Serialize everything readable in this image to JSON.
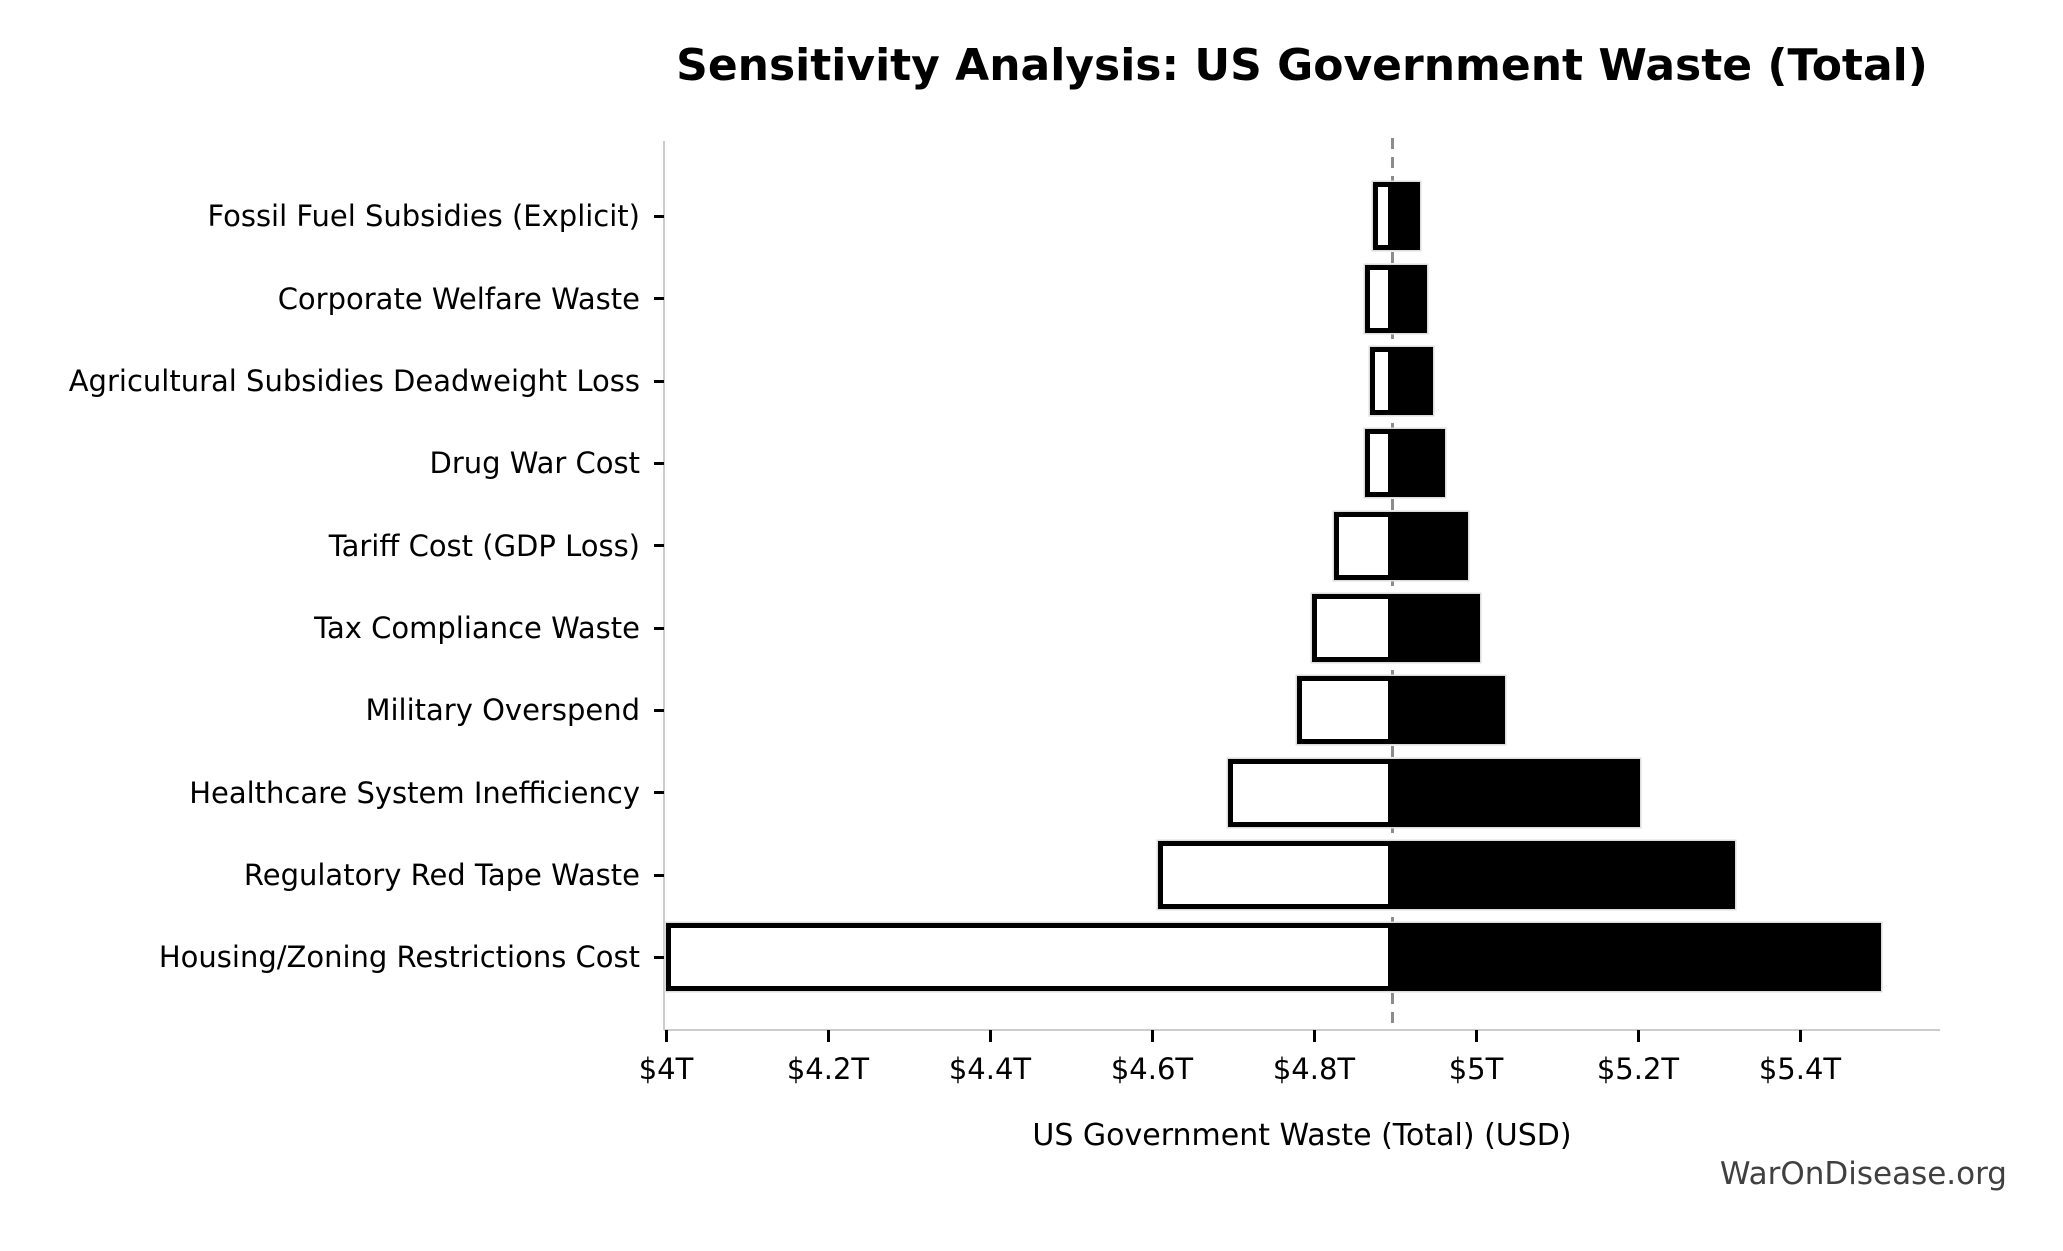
{
  "title": "Sensitivity Analysis: US Government Waste (Total)",
  "watermark": "WarOnDisease.org",
  "chart_data": {
    "type": "bar",
    "variant": "tornado-sensitivity",
    "orientation": "horizontal",
    "title": "Sensitivity Analysis: US Government Waste (Total)",
    "xlabel": "US Government Waste (Total) (USD)",
    "unit": "trillions of USD",
    "xlim": [
      4.0,
      5.57
    ],
    "xticks": [
      4.0,
      4.2,
      4.4,
      4.6,
      4.8,
      5.0,
      5.2,
      5.4
    ],
    "xtick_labels": [
      "$4T",
      "$4.2T",
      "$4.4T",
      "$4.6T",
      "$4.8T",
      "$5T",
      "$5.2T",
      "$5.4T"
    ],
    "baseline_value": 4.897,
    "grid": false,
    "legend": false,
    "categories": [
      "Fossil Fuel Subsidies (Explicit)",
      "Corporate Welfare Waste",
      "Agricultural Subsidies Deadweight Loss",
      "Drug War Cost",
      "Tariff Cost (GDP Loss)",
      "Tax Compliance Waste",
      "Military Overspend",
      "Healthcare System Inefficiency",
      "Regulatory Red Tape Waste",
      "Housing/Zoning Restrictions Cost"
    ],
    "bars": [
      {
        "label": "Fossil Fuel Subsidies (Explicit)",
        "low": 4.873,
        "high": 4.931
      },
      {
        "label": "Corporate Welfare Waste",
        "low": 4.863,
        "high": 4.94
      },
      {
        "label": "Agricultural Subsidies Deadweight Loss",
        "low": 4.869,
        "high": 4.947
      },
      {
        "label": "Drug War Cost",
        "low": 4.863,
        "high": 4.962
      },
      {
        "label": "Tariff Cost (GDP Loss)",
        "low": 4.825,
        "high": 4.99
      },
      {
        "label": "Tax Compliance Waste",
        "low": 4.798,
        "high": 5.005
      },
      {
        "label": "Military Overspend",
        "low": 4.779,
        "high": 5.036
      },
      {
        "label": "Healthcare System Inefficiency",
        "low": 4.694,
        "high": 5.202
      },
      {
        "label": "Regulatory Red Tape Waste",
        "low": 4.607,
        "high": 5.32
      },
      {
        "label": "Housing/Zoning Restrictions Cost",
        "low": 4.0,
        "high": 5.5
      }
    ],
    "colors": {
      "low_fill": "#ffffff",
      "high_fill": "#000000",
      "bar_edge": "#000000",
      "baseline_line": "#8c8c8c",
      "spine": "#cccccc",
      "text": "#000000",
      "watermark": "#404040"
    }
  }
}
